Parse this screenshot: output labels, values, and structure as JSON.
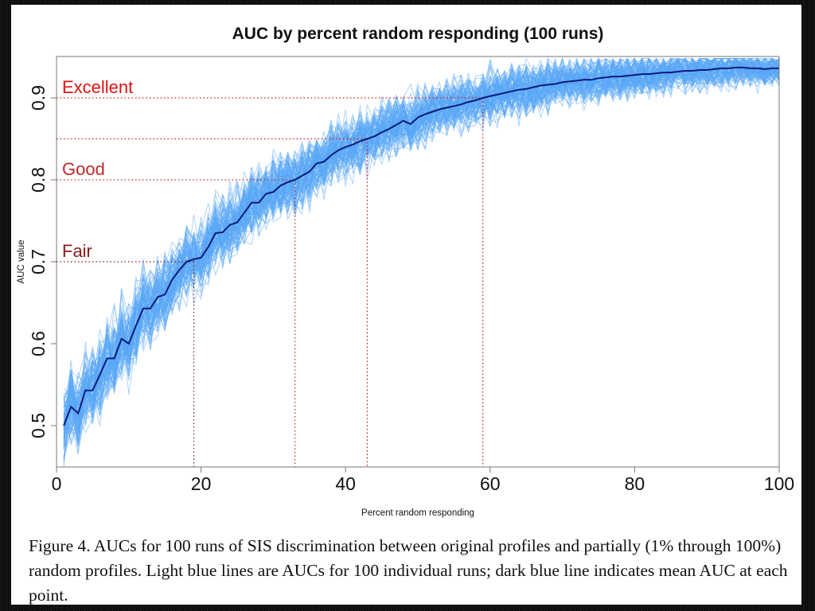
{
  "chart_data": {
    "type": "line",
    "title": "AUC by percent random responding (100 runs)",
    "xlabel": "Percent random responding",
    "ylabel": "AUC value",
    "xlim": [
      0,
      100
    ],
    "ylim": [
      0.45,
      0.95
    ],
    "x_ticks": [
      "0",
      "20",
      "40",
      "60",
      "80",
      "100"
    ],
    "x_tick_values": [
      0,
      20,
      40,
      60,
      80,
      100
    ],
    "y_ticks": [
      "0.5",
      "0.6",
      "0.7",
      "0.8",
      "0.9"
    ],
    "y_tick_values": [
      0.5,
      0.6,
      0.7,
      0.8,
      0.9
    ],
    "grid": false,
    "thresholds": [
      {
        "label": "Excellent",
        "y": 0.9,
        "x_cross": 59,
        "color": "#e01010"
      },
      {
        "label": "",
        "y": 0.85,
        "x_cross": 43,
        "color": "#e01010"
      },
      {
        "label": "Good",
        "y": 0.8,
        "x_cross": 33,
        "color": "#c0282a"
      },
      {
        "label": "Fair",
        "y": 0.7,
        "x_cross": 19,
        "color": "#8b1a1a"
      }
    ],
    "series": [
      {
        "name": "Mean AUC",
        "color": "#0a1a7a",
        "x_start": 1,
        "x_step": 1,
        "values": [
          0.5,
          0.523,
          0.515,
          0.543,
          0.543,
          0.562,
          0.582,
          0.582,
          0.606,
          0.6,
          0.622,
          0.643,
          0.643,
          0.657,
          0.66,
          0.678,
          0.69,
          0.7,
          0.703,
          0.705,
          0.718,
          0.735,
          0.736,
          0.745,
          0.748,
          0.76,
          0.772,
          0.772,
          0.783,
          0.785,
          0.793,
          0.797,
          0.8,
          0.805,
          0.81,
          0.82,
          0.822,
          0.83,
          0.836,
          0.84,
          0.843,
          0.847,
          0.85,
          0.853,
          0.858,
          0.862,
          0.867,
          0.872,
          0.868,
          0.876,
          0.88,
          0.883,
          0.886,
          0.888,
          0.89,
          0.892,
          0.895,
          0.897,
          0.9,
          0.902,
          0.904,
          0.906,
          0.908,
          0.91,
          0.911,
          0.913,
          0.915,
          0.916,
          0.917,
          0.919,
          0.92,
          0.921,
          0.922,
          0.922,
          0.924,
          0.925,
          0.926,
          0.926,
          0.927,
          0.928,
          0.929,
          0.929,
          0.93,
          0.931,
          0.931,
          0.932,
          0.933,
          0.933,
          0.934,
          0.934,
          0.935,
          0.936,
          0.936,
          0.937,
          0.937,
          0.936,
          0.936,
          0.935,
          0.936,
          0.936
        ]
      },
      {
        "name": "Individual runs (100)",
        "color": "#5aa8f5",
        "spread_sd": [
          0.035,
          0.03,
          0.025,
          0.02,
          0.015
        ]
      }
    ]
  },
  "caption": "Figure 4. AUCs for 100 runs of SIS discrimination between original profiles and partially (1% through 100%) random profiles. Light blue lines are AUCs for 100 individual runs; dark blue line indicates mean AUC at each point."
}
